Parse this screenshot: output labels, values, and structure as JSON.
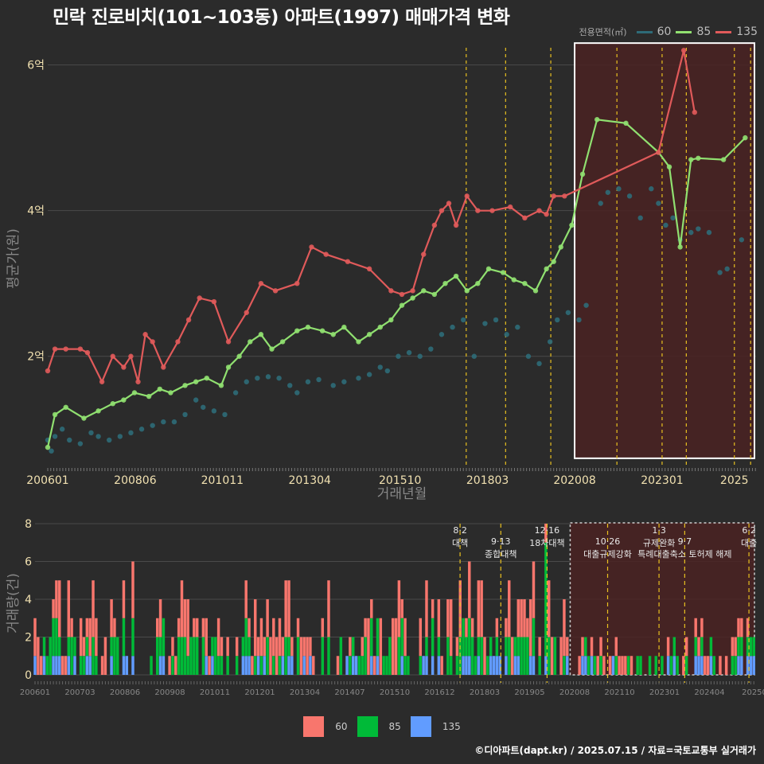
{
  "title": "민락 진로비치(101~103동) 아파트(1997) 매매가격 변화",
  "footer": "©디아파트(dapt.kr) / 2025.07.15 / 자료=국토교통부 실거래가",
  "colors": {
    "background": "#2b2b2b",
    "grid": "#4a4a4a",
    "area60": "#2e6b78",
    "area85": "#90e070",
    "area135": "#e05a5a",
    "bar60": "#f8766d",
    "bar85": "#00ba38",
    "bar135": "#619cff",
    "event_line": "#e8c020",
    "highlight_fill": "#4a2222"
  },
  "chart_data": [
    {
      "type": "line",
      "name": "price",
      "xlabel": "거래년월",
      "ylabel": "평균가(원)",
      "legend_title": "전용면적(㎡)",
      "legend_position": "top-right",
      "grid": true,
      "xlim": [
        2006.0,
        2025.6
      ],
      "ylim": [
        0.5,
        6.4
      ],
      "x_ticks": [
        {
          "value": 2006.0,
          "label": "200601"
        },
        {
          "value": 2008.42,
          "label": "200806"
        },
        {
          "value": 2010.83,
          "label": "201011"
        },
        {
          "value": 2013.25,
          "label": "201304"
        },
        {
          "value": 2015.75,
          "label": "201510"
        },
        {
          "value": 2018.17,
          "label": "201803"
        },
        {
          "value": 2020.58,
          "label": "202008"
        },
        {
          "value": 2023.0,
          "label": "202301"
        },
        {
          "value": 2025.0,
          "label": "2025"
        }
      ],
      "y_ticks": [
        {
          "value": 2,
          "label": "2억"
        },
        {
          "value": 4,
          "label": "4억"
        },
        {
          "value": 6,
          "label": "6억"
        }
      ],
      "event_lines": [
        2017.58,
        2018.67,
        2019.92,
        2021.75,
        2023.0,
        2023.67,
        2025.0,
        2025.45
      ],
      "highlight_range": {
        "x": [
          2020.58,
          2025.6
        ],
        "y": [
          0.6,
          6.3
        ]
      },
      "series": [
        {
          "name": "60",
          "color": "#2e6b78",
          "points": [
            [
              2006.0,
              0.85
            ],
            [
              2006.1,
              0.7
            ],
            [
              2006.2,
              0.9
            ],
            [
              2006.4,
              1.0
            ],
            [
              2006.6,
              0.85
            ],
            [
              2006.9,
              0.8
            ],
            [
              2007.2,
              0.95
            ],
            [
              2007.4,
              0.9
            ],
            [
              2007.7,
              0.85
            ],
            [
              2008.0,
              0.9
            ],
            [
              2008.3,
              0.95
            ],
            [
              2008.6,
              1.0
            ],
            [
              2008.9,
              1.05
            ],
            [
              2009.2,
              1.1
            ],
            [
              2009.5,
              1.1
            ],
            [
              2009.8,
              1.2
            ],
            [
              2010.1,
              1.4
            ],
            [
              2010.3,
              1.3
            ],
            [
              2010.6,
              1.25
            ],
            [
              2010.9,
              1.2
            ],
            [
              2011.2,
              1.5
            ],
            [
              2011.5,
              1.65
            ],
            [
              2011.8,
              1.7
            ],
            [
              2012.1,
              1.72
            ],
            [
              2012.4,
              1.7
            ],
            [
              2012.7,
              1.6
            ],
            [
              2012.9,
              1.5
            ],
            [
              2013.2,
              1.65
            ],
            [
              2013.5,
              1.68
            ],
            [
              2013.9,
              1.6
            ],
            [
              2014.2,
              1.65
            ],
            [
              2014.6,
              1.7
            ],
            [
              2014.9,
              1.75
            ],
            [
              2015.2,
              1.85
            ],
            [
              2015.4,
              1.8
            ],
            [
              2015.7,
              2.0
            ],
            [
              2016.0,
              2.05
            ],
            [
              2016.3,
              2.0
            ],
            [
              2016.6,
              2.1
            ],
            [
              2016.9,
              2.3
            ],
            [
              2017.2,
              2.4
            ],
            [
              2017.5,
              2.5
            ],
            [
              2017.8,
              2.0
            ],
            [
              2018.1,
              2.45
            ],
            [
              2018.4,
              2.5
            ],
            [
              2018.7,
              2.3
            ],
            [
              2019.0,
              2.4
            ],
            [
              2019.3,
              2.0
            ],
            [
              2019.6,
              1.9
            ],
            [
              2019.9,
              2.2
            ],
            [
              2020.1,
              2.5
            ],
            [
              2020.4,
              2.6
            ],
            [
              2020.7,
              2.5
            ],
            [
              2020.9,
              2.7
            ],
            [
              2021.3,
              4.1
            ],
            [
              2021.5,
              4.25
            ],
            [
              2021.8,
              4.3
            ],
            [
              2022.1,
              4.2
            ],
            [
              2022.4,
              3.9
            ],
            [
              2022.7,
              4.3
            ],
            [
              2022.9,
              4.1
            ],
            [
              2023.1,
              3.8
            ],
            [
              2023.3,
              3.9
            ],
            [
              2023.5,
              3.6
            ],
            [
              2023.8,
              3.7
            ],
            [
              2024.0,
              3.75
            ],
            [
              2024.3,
              3.7
            ],
            [
              2024.6,
              3.15
            ],
            [
              2024.8,
              3.2
            ],
            [
              2025.2,
              3.6
            ]
          ]
        },
        {
          "name": "85",
          "color": "#90e070",
          "points": [
            [
              2006.0,
              0.75
            ],
            [
              2006.2,
              1.2
            ],
            [
              2006.5,
              1.3
            ],
            [
              2007.0,
              1.15
            ],
            [
              2007.4,
              1.25
            ],
            [
              2007.8,
              1.35
            ],
            [
              2008.1,
              1.4
            ],
            [
              2008.4,
              1.5
            ],
            [
              2008.8,
              1.45
            ],
            [
              2009.1,
              1.55
            ],
            [
              2009.4,
              1.5
            ],
            [
              2009.8,
              1.6
            ],
            [
              2010.1,
              1.65
            ],
            [
              2010.4,
              1.7
            ],
            [
              2010.8,
              1.6
            ],
            [
              2011.0,
              1.85
            ],
            [
              2011.3,
              2.0
            ],
            [
              2011.6,
              2.2
            ],
            [
              2011.9,
              2.3
            ],
            [
              2012.2,
              2.1
            ],
            [
              2012.5,
              2.2
            ],
            [
              2012.9,
              2.35
            ],
            [
              2013.2,
              2.4
            ],
            [
              2013.6,
              2.35
            ],
            [
              2013.9,
              2.3
            ],
            [
              2014.2,
              2.4
            ],
            [
              2014.6,
              2.2
            ],
            [
              2014.9,
              2.3
            ],
            [
              2015.2,
              2.4
            ],
            [
              2015.5,
              2.5
            ],
            [
              2015.8,
              2.7
            ],
            [
              2016.1,
              2.8
            ],
            [
              2016.4,
              2.9
            ],
            [
              2016.7,
              2.85
            ],
            [
              2017.0,
              3.0
            ],
            [
              2017.3,
              3.1
            ],
            [
              2017.6,
              2.9
            ],
            [
              2017.9,
              3.0
            ],
            [
              2018.2,
              3.2
            ],
            [
              2018.6,
              3.15
            ],
            [
              2018.9,
              3.05
            ],
            [
              2019.2,
              3.0
            ],
            [
              2019.5,
              2.9
            ],
            [
              2019.8,
              3.2
            ],
            [
              2020.0,
              3.3
            ],
            [
              2020.2,
              3.5
            ],
            [
              2020.5,
              3.8
            ],
            [
              2020.8,
              4.5
            ],
            [
              2021.2,
              5.25
            ],
            [
              2022.0,
              5.2
            ],
            [
              2022.9,
              4.8
            ],
            [
              2023.2,
              4.6
            ],
            [
              2023.5,
              3.5
            ],
            [
              2023.8,
              4.7
            ],
            [
              2024.0,
              4.72
            ],
            [
              2024.7,
              4.7
            ],
            [
              2025.3,
              5.0
            ]
          ]
        },
        {
          "name": "135",
          "color": "#e05a5a",
          "points": [
            [
              2006.0,
              1.8
            ],
            [
              2006.2,
              2.1
            ],
            [
              2006.5,
              2.1
            ],
            [
              2006.9,
              2.1
            ],
            [
              2007.1,
              2.05
            ],
            [
              2007.5,
              1.65
            ],
            [
              2007.8,
              2.0
            ],
            [
              2008.1,
              1.85
            ],
            [
              2008.3,
              2.0
            ],
            [
              2008.5,
              1.65
            ],
            [
              2008.7,
              2.3
            ],
            [
              2008.9,
              2.2
            ],
            [
              2009.2,
              1.85
            ],
            [
              2009.6,
              2.2
            ],
            [
              2009.9,
              2.5
            ],
            [
              2010.2,
              2.8
            ],
            [
              2010.6,
              2.75
            ],
            [
              2011.0,
              2.2
            ],
            [
              2011.5,
              2.6
            ],
            [
              2011.9,
              3.0
            ],
            [
              2012.3,
              2.9
            ],
            [
              2012.9,
              3.0
            ],
            [
              2013.3,
              3.5
            ],
            [
              2013.7,
              3.4
            ],
            [
              2014.3,
              3.3
            ],
            [
              2014.9,
              3.2
            ],
            [
              2015.5,
              2.9
            ],
            [
              2015.8,
              2.85
            ],
            [
              2016.1,
              2.9
            ],
            [
              2016.4,
              3.4
            ],
            [
              2016.7,
              3.8
            ],
            [
              2016.9,
              4.0
            ],
            [
              2017.1,
              4.1
            ],
            [
              2017.3,
              3.8
            ],
            [
              2017.6,
              4.2
            ],
            [
              2017.9,
              4.0
            ],
            [
              2018.3,
              4.0
            ],
            [
              2018.8,
              4.05
            ],
            [
              2019.2,
              3.9
            ],
            [
              2019.6,
              4.0
            ],
            [
              2019.8,
              3.95
            ],
            [
              2020.0,
              4.2
            ],
            [
              2020.3,
              4.2
            ],
            [
              2022.9,
              4.8
            ],
            [
              2023.6,
              6.2
            ],
            [
              2023.9,
              5.35
            ]
          ]
        }
      ]
    },
    {
      "type": "bar",
      "name": "volume",
      "ylabel": "거래량(건)",
      "xlim": [
        2006.0,
        2025.6
      ],
      "ylim": [
        0,
        8
      ],
      "y_ticks": [
        0,
        2,
        4,
        6,
        8
      ],
      "x_ticks": [
        "200601",
        "200703",
        "200806",
        "200908",
        "201011",
        "201201",
        "201304",
        "201407",
        "201510",
        "201612",
        "201803",
        "201905",
        "202008",
        "202110",
        "202301",
        "202404",
        "20250"
      ],
      "highlight_range": [
        2020.58,
        2025.6
      ],
      "event_lines": [
        {
          "x": 2017.58,
          "label": "8·2 대책"
        },
        {
          "x": 2018.69,
          "label": "9·13 종합대책"
        },
        {
          "x": 2019.95,
          "label": "12·16 18차대책"
        },
        {
          "x": 2021.6,
          "label": "10·26 대출규제강화"
        },
        {
          "x": 2023.0,
          "label": "1·3 규제완화"
        },
        {
          "x": 2023.7,
          "label": "9·7 특례대출축소 토허제 해제"
        },
        {
          "x": 2025.45,
          "label": "6·2 대출"
        }
      ],
      "series": [
        {
          "name": "60",
          "color": "#f8766d"
        },
        {
          "name": "85",
          "color": "#00ba38"
        },
        {
          "name": "135",
          "color": "#619cff"
        }
      ]
    }
  ]
}
